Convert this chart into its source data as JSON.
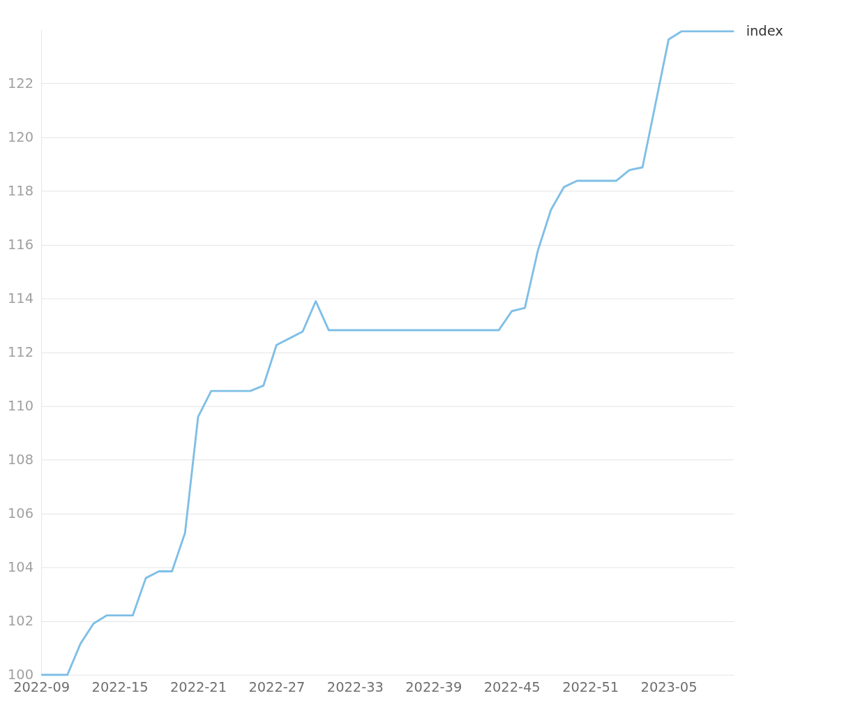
{
  "chart_data": {
    "type": "line",
    "categories": [
      "2022-09",
      null,
      null,
      null,
      null,
      null,
      "2022-15",
      null,
      null,
      null,
      null,
      null,
      "2022-21",
      null,
      null,
      null,
      null,
      null,
      "2022-27",
      null,
      null,
      null,
      null,
      null,
      "2022-33",
      null,
      null,
      null,
      null,
      null,
      "2022-39",
      null,
      null,
      null,
      null,
      null,
      "2022-45",
      null,
      null,
      null,
      null,
      null,
      "2022-51",
      null,
      null,
      null,
      null,
      null,
      "2023-05",
      null,
      null,
      null,
      null,
      null
    ],
    "series": [
      {
        "name": "index",
        "color": "#7fbfe6",
        "values": [
          100,
          100,
          100,
          101.16,
          101.91,
          102.21,
          102.21,
          102.21,
          103.6,
          103.85,
          103.85,
          105.28,
          109.6,
          110.56,
          110.56,
          110.56,
          110.56,
          110.76,
          112.27,
          112.52,
          112.77,
          113.9,
          112.82,
          112.82,
          112.82,
          112.82,
          112.82,
          112.82,
          112.82,
          112.82,
          112.82,
          112.82,
          112.82,
          112.82,
          112.82,
          112.82,
          113.53,
          113.65,
          115.79,
          117.3,
          118.15,
          118.38,
          118.38,
          118.38,
          118.38,
          118.78,
          118.88,
          121.25,
          123.64,
          123.94,
          123.94,
          123.94,
          123.94,
          123.94
        ]
      }
    ],
    "ylim": [
      100,
      124
    ],
    "yticks": [
      100,
      102,
      104,
      106,
      108,
      110,
      112,
      114,
      116,
      118,
      120,
      122
    ],
    "grid": "y",
    "marker": "none",
    "line_style": "solid"
  }
}
